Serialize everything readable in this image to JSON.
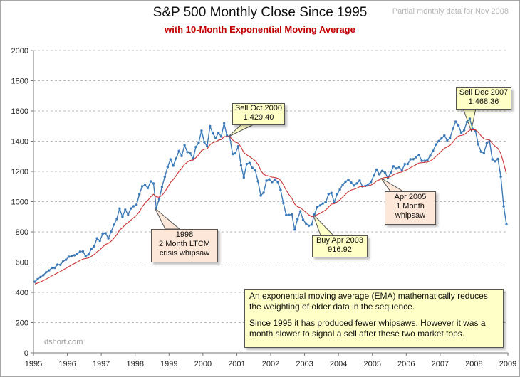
{
  "chart_data": {
    "type": "line",
    "title": "S&P 500 Monthly Close Since 1995",
    "subtitle": "with 10-Month Exponential Moving Average",
    "note": "Partial monthly  data for Nov 2008",
    "credit": "dshort.com",
    "ylim": [
      0,
      2000
    ],
    "yticks": [
      0,
      200,
      400,
      600,
      800,
      1000,
      1200,
      1400,
      1600,
      1800,
      2000
    ],
    "xlim": [
      1995,
      2009
    ],
    "xticks": [
      1995,
      1996,
      1997,
      1998,
      1999,
      2000,
      2001,
      2002,
      2003,
      2004,
      2005,
      2006,
      2007,
      2008,
      2009
    ],
    "grid": true,
    "series": [
      {
        "name": "S&P 500 Monthly Close",
        "color": "#3d7ab8",
        "markers": true,
        "values": [
          470,
          487,
          501,
          514,
          533,
          545,
          562,
          562,
          584,
          582,
          605,
          616,
          636,
          640,
          645,
          654,
          669,
          671,
          640,
          651,
          687,
          705,
          757,
          741,
          786,
          791,
          757,
          801,
          848,
          885,
          954,
          899,
          947,
          915,
          955,
          970,
          980,
          1049,
          1101,
          1111,
          1090,
          1134,
          1120,
          957,
          1017,
          1098,
          1164,
          1229,
          1280,
          1238,
          1286,
          1335,
          1302,
          1373,
          1328,
          1320,
          1283,
          1362,
          1389,
          1469,
          1394,
          1366,
          1499,
          1452,
          1421,
          1455,
          1431,
          1518,
          1437,
          1429,
          1315,
          1320,
          1366,
          1240,
          1160,
          1249,
          1256,
          1224,
          1211,
          1134,
          1040,
          1060,
          1139,
          1148,
          1130,
          1147,
          1130,
          1077,
          990,
          912,
          912,
          916,
          815,
          885,
          936,
          880,
          855,
          841,
          848,
          916,
          964,
          975,
          988,
          996,
          1050,
          1058,
          996,
          1050,
          1080,
          1112,
          1132,
          1145,
          1126,
          1107,
          1121,
          1140,
          1101,
          1104,
          1114,
          1130,
          1173,
          1212,
          1181,
          1204,
          1191,
          1157,
          1191,
          1234,
          1220,
          1228,
          1207,
          1249,
          1249,
          1280,
          1281,
          1294,
          1310,
          1270,
          1270,
          1276,
          1304,
          1336,
          1378,
          1401,
          1418,
          1438,
          1406,
          1420,
          1482,
          1530,
          1503,
          1455,
          1473,
          1527,
          1549,
          1481,
          1468,
          1379,
          1331,
          1323,
          1386,
          1400,
          1280,
          1267,
          1283,
          1165,
          969,
          850
        ]
      },
      {
        "name": "10-Month Exponential Moving Average",
        "color": "#cc3333",
        "markers": false,
        "values": [
          455,
          462,
          469,
          478,
          488,
          498,
          509,
          518,
          529,
          538,
          549,
          559,
          570,
          581,
          591,
          600,
          611,
          620,
          624,
          628,
          638,
          650,
          668,
          681,
          700,
          717,
          724,
          738,
          758,
          781,
          812,
          827,
          849,
          861,
          878,
          894,
          909,
          934,
          964,
          991,
          1009,
          1032,
          1049,
          1032,
          1029,
          1041,
          1065,
          1094,
          1127,
          1147,
          1171,
          1200,
          1220,
          1247,
          1262,
          1273,
          1275,
          1291,
          1309,
          1338,
          1347,
          1349,
          1376,
          1390,
          1396,
          1407,
          1411,
          1430,
          1430,
          1430,
          1409,
          1393,
          1388,
          1361,
          1324,
          1310,
          1299,
          1285,
          1271,
          1246,
          1208,
          1180,
          1173,
          1169,
          1162,
          1160,
          1155,
          1141,
          1113,
          1076,
          1046,
          1022,
          984,
          966,
          960,
          945,
          929,
          913,
          901,
          904,
          914,
          923,
          934,
          945,
          964,
          984,
          986,
          997,
          1012,
          1030,
          1049,
          1066,
          1077,
          1082,
          1089,
          1099,
          1100,
          1101,
          1104,
          1109,
          1120,
          1137,
          1145,
          1155,
          1161,
          1160,
          1166,
          1178,
          1186,
          1193,
          1196,
          1206,
          1213,
          1225,
          1235,
          1245,
          1256,
          1258,
          1260,
          1262,
          1269,
          1281,
          1299,
          1317,
          1335,
          1353,
          1362,
          1373,
          1393,
          1418,
          1434,
          1438,
          1443,
          1458,
          1474,
          1476,
          1475,
          1459,
          1436,
          1416,
          1411,
          1409,
          1385,
          1366,
          1352,
          1318,
          1254,
          1183
        ]
      }
    ],
    "annotations": [
      {
        "key": "sell2000",
        "lines": [
          "Sell Oct 2000",
          "1,429.40"
        ],
        "x": 2000.75,
        "y": 1429.4
      },
      {
        "key": "sell2007",
        "lines": [
          "Sell Dec  2007",
          "1,468.36"
        ],
        "x": 2007.917,
        "y": 1468.36
      },
      {
        "key": "ltcm1998",
        "lines": [
          "1998",
          "2 Month LTCM",
          "crisis whipsaw"
        ],
        "x": 1998.583,
        "y": 957
      },
      {
        "key": "buy2003",
        "lines": [
          "Buy Apr 2003",
          "916.92"
        ],
        "x": 2003.25,
        "y": 916.92
      },
      {
        "key": "whip2005",
        "lines": [
          "Apr 2005",
          "1 Month",
          "whipsaw"
        ],
        "x": 2005.25,
        "y": 1157
      }
    ]
  },
  "info_box": {
    "para1": "An exponential moving average (EMA) mathematically reduces the weighting of older data in the sequence.",
    "para2": "Since 1995 it has produced fewer whipsaws. However it was a month slower to signal a sell after these two market tops."
  }
}
